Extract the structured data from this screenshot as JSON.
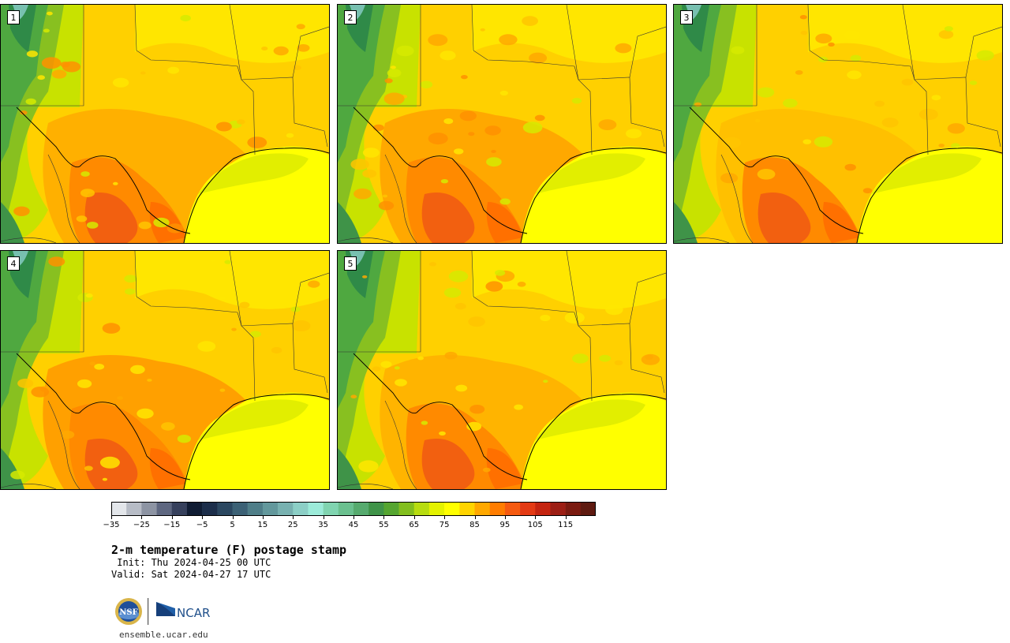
{
  "panels": [
    {
      "label": "1",
      "variant": 0
    },
    {
      "label": "2",
      "variant": 1
    },
    {
      "label": "3",
      "variant": 2
    },
    {
      "label": "4",
      "variant": 3
    },
    {
      "label": "5",
      "variant": 4
    }
  ],
  "colorbar": {
    "colors": [
      "#e3e6ea",
      "#b7bcc6",
      "#8d94a3",
      "#5e6780",
      "#36405c",
      "#101c33",
      "#1c2e4a",
      "#2b4760",
      "#3c6175",
      "#4f7e88",
      "#63989c",
      "#78b1b0",
      "#8ccfc6",
      "#9cebd9",
      "#80d4b0",
      "#6bc08f",
      "#56aa6e",
      "#3f9348",
      "#55a530",
      "#82be1e",
      "#b7dc10",
      "#e4f200",
      "#ffff00",
      "#ffd400",
      "#ffa800",
      "#ff7d00",
      "#f55a10",
      "#e33a14",
      "#c42410",
      "#9c1e14",
      "#7a1a10",
      "#5e1a10"
    ],
    "tick_labels": [
      "−35",
      "−25",
      "−15",
      "−5",
      "5",
      "15",
      "25",
      "35",
      "45",
      "55",
      "65",
      "75",
      "85",
      "95",
      "105",
      "115"
    ]
  },
  "title": "2-m temperature (F) postage stamp",
  "init_line": " Init: Thu 2024-04-25 00 UTC",
  "valid_line": "Valid: Sat 2024-04-27 17 UTC",
  "logos": {
    "nsf": "NSF",
    "ncar": "NCAR"
  },
  "site": "ensemble.ucar.edu"
}
